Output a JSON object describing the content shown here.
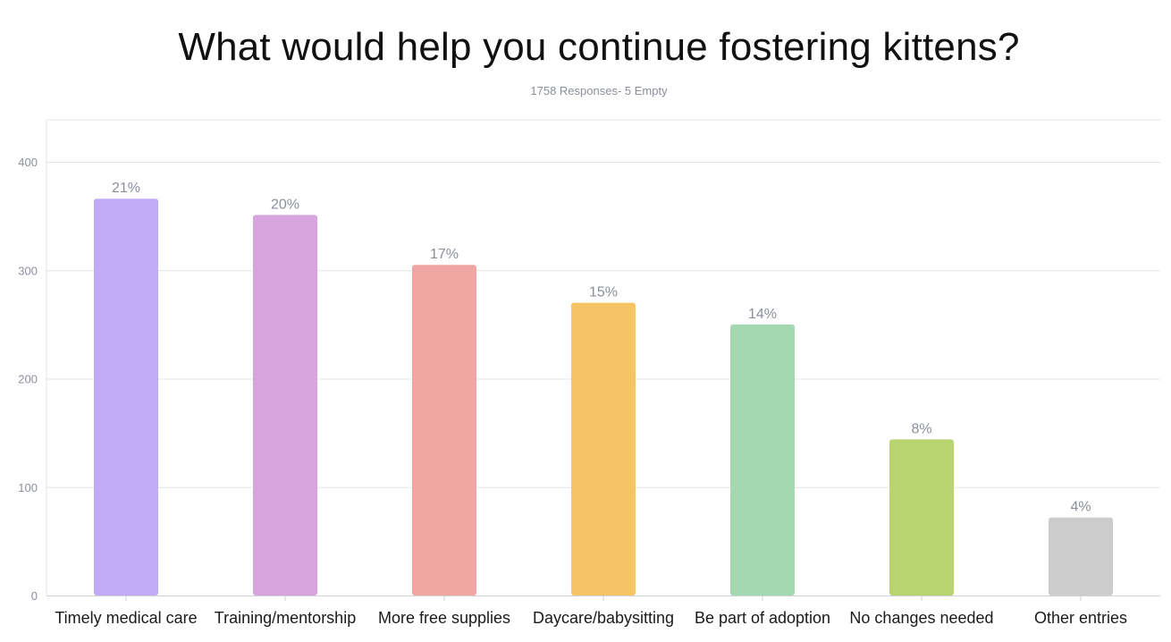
{
  "chart_data": {
    "type": "bar",
    "title": "What would help you continue fostering kittens?",
    "subtitle": "1758 Responses- 5 Empty",
    "xlabel": "",
    "ylabel": "",
    "ylim": [
      0,
      440
    ],
    "yticks": [
      0,
      100,
      200,
      300,
      400
    ],
    "grid": true,
    "categories": [
      "Timely medical care",
      "Training/mentorship",
      "More free supplies",
      "Daycare/babysitting",
      "Be part of adoption",
      "No changes needed",
      "Other entries"
    ],
    "values": [
      366,
      351,
      305,
      270,
      250,
      144,
      72
    ],
    "data_labels": [
      "21%",
      "20%",
      "17%",
      "15%",
      "14%",
      "8%",
      "4%"
    ],
    "colors": [
      "#c1abf7",
      "#d8a4de",
      "#f0a6a3",
      "#f4c465",
      "#a3d8b0",
      "#b8d46e",
      "#cccccc"
    ]
  }
}
